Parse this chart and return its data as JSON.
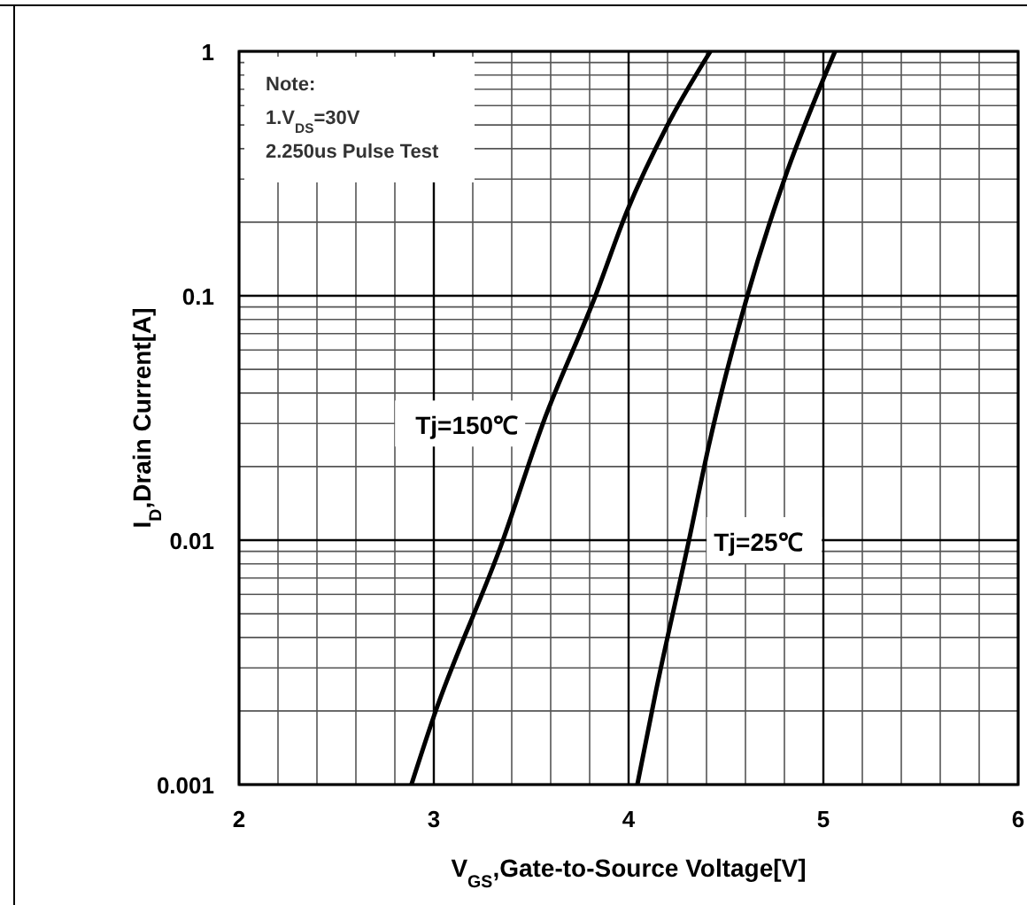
{
  "chart_data": {
    "type": "line",
    "xlabel": "V$_{GS}$,Gate-to-Source  Voltage[V]",
    "ylabel": "I$_{D}$,Drain Current[A]",
    "annotations": [
      "Note:",
      "1.V$_{DS}$=30V",
      "2.250us Pulse Test"
    ],
    "series": [
      {
        "name": "Tj=150℃",
        "color": "#000000",
        "x": [
          2.885,
          3.0,
          3.355,
          3.56,
          3.83,
          3.99,
          4.2,
          4.42
        ],
        "values": [
          0.001,
          0.0019,
          0.01,
          0.03,
          0.1,
          0.22,
          0.5,
          1
        ]
      },
      {
        "name": "Tj=25℃",
        "color": "#000000",
        "x": [
          4.045,
          4.14,
          4.31,
          4.41,
          4.61,
          4.8,
          5.0,
          5.06
        ],
        "values": [
          0.001,
          0.0024,
          0.01,
          0.024,
          0.1,
          0.3,
          0.77,
          1
        ]
      }
    ],
    "xlim": [
      2,
      6
    ],
    "xticks": [
      2,
      3,
      4,
      5,
      6
    ],
    "ylim": [
      0.001,
      1
    ],
    "yticks": [
      0.001,
      0.01,
      0.1,
      1
    ],
    "log": "y",
    "grid": true,
    "legend": false,
    "marker": "none",
    "line_style": "solid"
  }
}
